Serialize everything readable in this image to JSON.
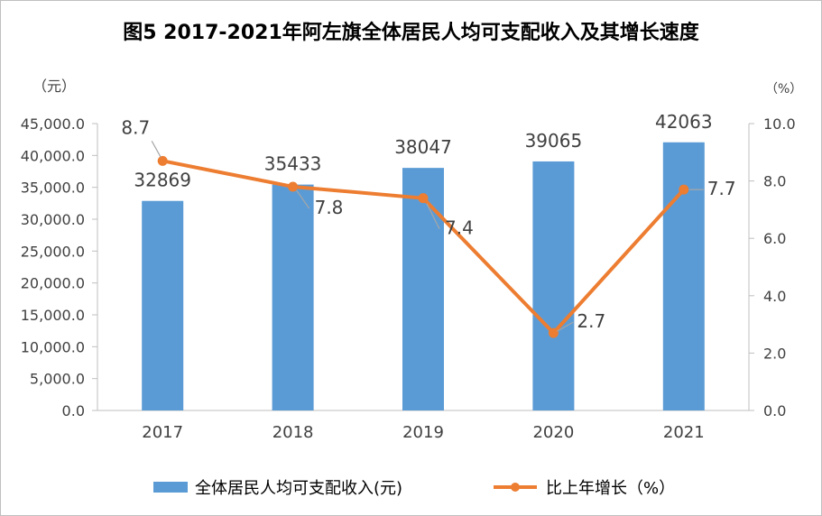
{
  "chart_data": {
    "type": "bar",
    "title": "图5  2017-2021年阿左旗全体居民人均可支配收入及其增长速度",
    "categories": [
      "2017",
      "2018",
      "2019",
      "2020",
      "2021"
    ],
    "series": [
      {
        "name": "全体居民人均可支配收入(元)",
        "type": "bar",
        "axis": "left",
        "values": [
          32869,
          35433,
          38047,
          39065,
          42063
        ],
        "labels": [
          "32869",
          "35433",
          "38047",
          "39065",
          "42063"
        ],
        "color": "#5B9BD5"
      },
      {
        "name": "比上年增长（%）",
        "type": "line",
        "axis": "right",
        "values": [
          8.7,
          7.8,
          7.4,
          2.7,
          7.7
        ],
        "labels": [
          "8.7",
          "7.8",
          "7.4",
          "2.7",
          "7.7"
        ],
        "color": "#ED7D31"
      }
    ],
    "y_left": {
      "unit": "（元）",
      "ylim": [
        0,
        45000
      ],
      "ticks": [
        "0.0",
        "5,000.0",
        "10,000.0",
        "15,000.0",
        "20,000.0",
        "25,000.0",
        "30,000.0",
        "35,000.0",
        "40,000.0",
        "45,000.0"
      ]
    },
    "y_right": {
      "unit": "（%）",
      "ylim": [
        0,
        10
      ],
      "ticks": [
        "0.0",
        "2.0",
        "4.0",
        "6.0",
        "8.0",
        "10.0"
      ]
    },
    "grid": false,
    "legend_position": "bottom"
  }
}
